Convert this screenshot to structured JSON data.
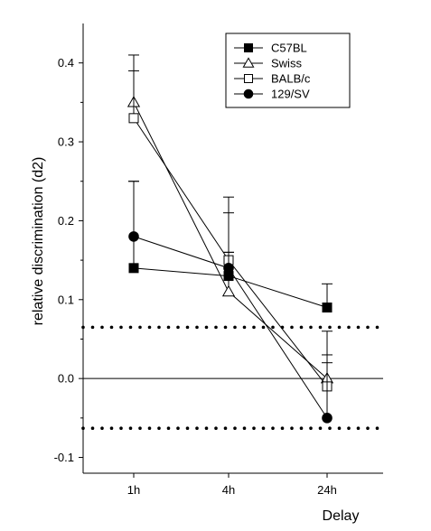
{
  "chart_data": {
    "type": "line",
    "xlabel": "Delay",
    "ylabel": "relative discrimination (d2)",
    "categories": [
      "1h",
      "4h",
      "24h"
    ],
    "ylim": [
      -0.12,
      0.45
    ],
    "yticks": [
      -0.1,
      0.0,
      0.1,
      0.2,
      0.3,
      0.4
    ],
    "ytick_labels": [
      "-0.1",
      "0.0",
      "0.1",
      "0.2",
      "0.3",
      "0.4"
    ],
    "grid": false,
    "legend": {
      "placement": "top-right"
    },
    "reference_lines": [
      {
        "y": 0.0,
        "style": "solid"
      },
      {
        "y": 0.065,
        "style": "dotted"
      },
      {
        "y": -0.063,
        "style": "dotted"
      }
    ],
    "series": [
      {
        "name": "C57BL",
        "marker": "square-filled",
        "values": [
          0.14,
          0.13,
          0.09
        ],
        "errors": [
          0.25,
          0.16,
          0.12
        ]
      },
      {
        "name": "Swiss",
        "marker": "triangle-open",
        "values": [
          0.35,
          0.11,
          0.0
        ],
        "errors": [
          0.41,
          0.21,
          0.06
        ]
      },
      {
        "name": "BALB/c",
        "marker": "square-open",
        "values": [
          0.33,
          0.15,
          -0.01
        ],
        "errors": [
          0.39,
          0.23,
          0.03
        ]
      },
      {
        "name": "129/SV",
        "marker": "circle-filled",
        "values": [
          0.18,
          0.14,
          -0.05
        ],
        "errors": [
          0.25,
          0.16,
          0.02
        ]
      }
    ]
  }
}
